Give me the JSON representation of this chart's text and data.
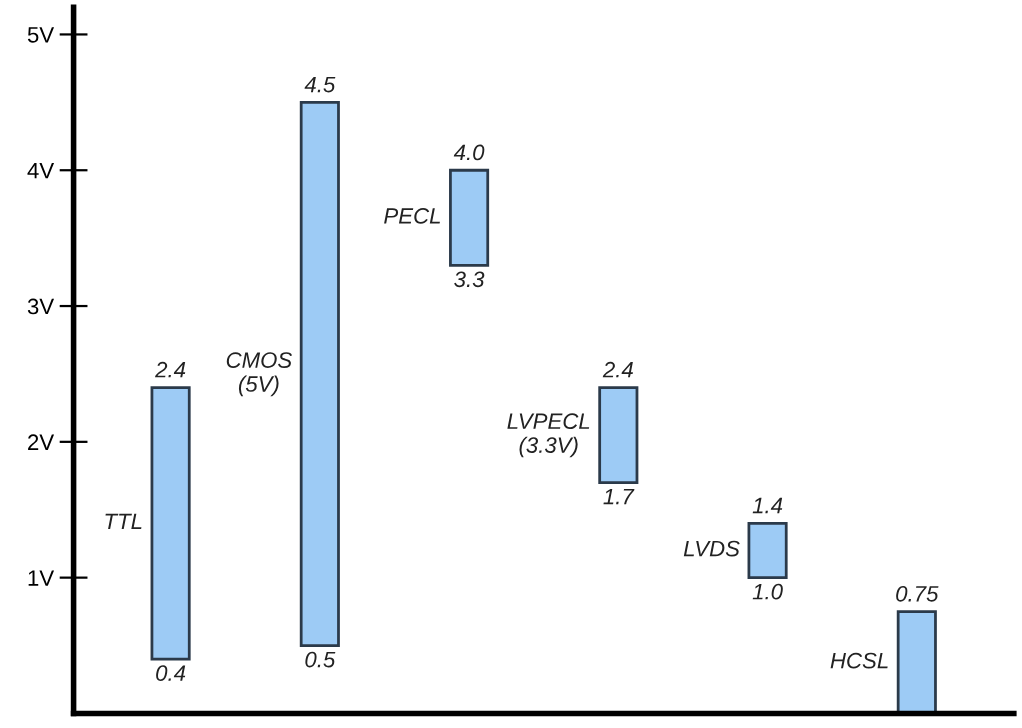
{
  "chart_data": {
    "type": "bar",
    "categories": [
      "TTL",
      "CMOS\n(5V)",
      "PECL",
      "LVPECL\n(3.3V)",
      "LVDS",
      "HCSL"
    ],
    "base": [
      0.4,
      0.5,
      3.3,
      1.7,
      1.0,
      0
    ],
    "values": [
      2.0,
      4.0,
      0.7,
      0.7,
      0.4,
      0.75
    ],
    "color": "#9dcbf5",
    "ylim": [
      0,
      5.2
    ],
    "yticks": [
      {
        "value": 1,
        "label": "1V"
      },
      {
        "value": 2,
        "label": "2V"
      },
      {
        "value": 3,
        "label": "3V"
      },
      {
        "value": 4,
        "label": "4V"
      },
      {
        "value": 5,
        "label": "5V"
      }
    ],
    "tick_labels": "y",
    "grid": false,
    "legend": false,
    "annotations": [
      {
        "text": "2.4",
        "x": "TTL",
        "y": 2.4
      },
      {
        "text": "0.4",
        "x": "TTL",
        "y": 0.4
      },
      {
        "text": "4.5",
        "x": "CMOS\n(5V)",
        "y": 4.5
      },
      {
        "text": "0.5",
        "x": "CMOS\n(5V)",
        "y": 0.5
      },
      {
        "text": "4.0",
        "x": "PECL",
        "y": 4.0
      },
      {
        "text": "3.3",
        "x": "PECL",
        "y": 3.3
      },
      {
        "text": "2.4",
        "x": "LVPECL\n(3.3V)",
        "y": 2.4
      },
      {
        "text": "1.7",
        "x": "LVPECL\n(3.3V)",
        "y": 1.7
      },
      {
        "text": "1.4",
        "x": "LVDS",
        "y": 1.4
      },
      {
        "text": "1.0",
        "x": "LVDS",
        "y": 1.0
      },
      {
        "text": "0.75",
        "x": "HCSL",
        "y": 0.75
      }
    ]
  }
}
